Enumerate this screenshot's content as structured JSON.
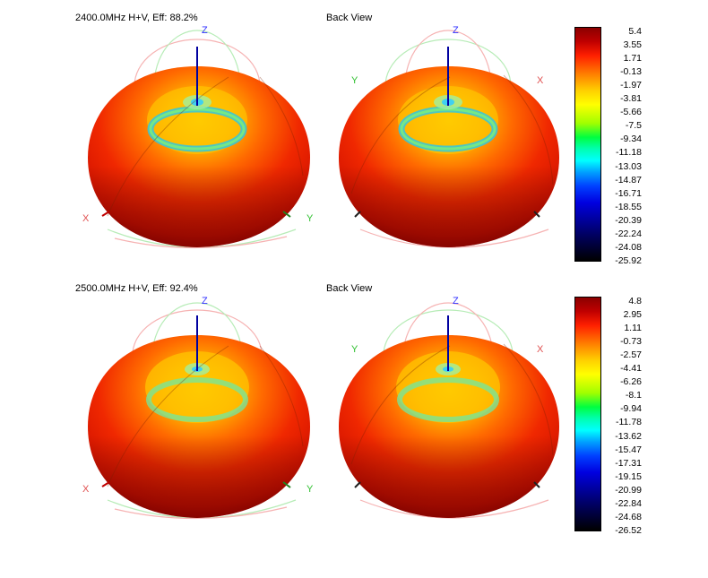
{
  "figures": [
    {
      "title": "2400.0MHz H+V, Eff: 88.2%",
      "back_title": "Back View",
      "axes": {
        "z": "Z",
        "x": "X",
        "y": "Y"
      },
      "colorbar": {
        "ticks": [
          "5.4",
          "3.55",
          "1.71",
          "-0.13",
          "-1.97",
          "-3.81",
          "-5.66",
          "-7.5",
          "-9.34",
          "-11.18",
          "-13.03",
          "-14.87",
          "-16.71",
          "-18.55",
          "-20.39",
          "-22.24",
          "-24.08",
          "-25.92"
        ]
      }
    },
    {
      "title": "2500.0MHz H+V, Eff: 92.4%",
      "back_title": "Back View",
      "axes": {
        "z": "Z",
        "x": "X",
        "y": "Y"
      },
      "colorbar": {
        "ticks": [
          "4.8",
          "2.95",
          "1.11",
          "-0.73",
          "-2.57",
          "-4.41",
          "-6.26",
          "-8.1",
          "-9.94",
          "-11.78",
          "-13.62",
          "-15.47",
          "-17.31",
          "-19.15",
          "-20.99",
          "-22.84",
          "-24.68",
          "-26.52"
        ]
      }
    }
  ],
  "chart_data": [
    {
      "type": "heatmap",
      "title": "2400.0MHz H+V, Eff: 88.2%",
      "frequency_mhz": 2400.0,
      "polarization": "H+V",
      "efficiency_percent": 88.2,
      "scale_max": 5.4,
      "scale_min": -25.92,
      "colorbar_ticks": [
        5.4,
        3.55,
        1.71,
        -0.13,
        -1.97,
        -3.81,
        -5.66,
        -7.5,
        -9.34,
        -11.18,
        -13.03,
        -14.87,
        -16.71,
        -18.55,
        -20.39,
        -22.24,
        -24.08,
        -25.92
      ],
      "views": [
        "front",
        "back"
      ]
    },
    {
      "type": "heatmap",
      "title": "2500.0MHz H+V, Eff: 92.4%",
      "frequency_mhz": 2500.0,
      "polarization": "H+V",
      "efficiency_percent": 92.4,
      "scale_max": 4.8,
      "scale_min": -26.52,
      "colorbar_ticks": [
        4.8,
        2.95,
        1.11,
        -0.73,
        -2.57,
        -4.41,
        -6.26,
        -8.1,
        -9.94,
        -11.78,
        -13.62,
        -15.47,
        -17.31,
        -19.15,
        -20.99,
        -22.84,
        -24.68,
        -26.52
      ],
      "views": [
        "front",
        "back"
      ]
    }
  ]
}
